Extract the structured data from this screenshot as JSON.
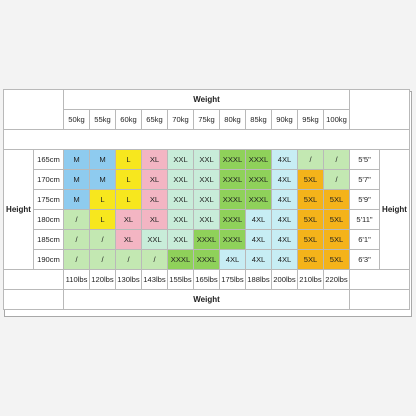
{
  "labels": {
    "weight_top": "Weight",
    "weight_bottom": "Weight",
    "height_left": "Height",
    "height_right": "Height"
  },
  "weights_kg": [
    "50kg",
    "55kg",
    "60kg",
    "65kg",
    "70kg",
    "75kg",
    "80kg",
    "85kg",
    "90kg",
    "95kg",
    "100kg"
  ],
  "weights_lbs": [
    "110lbs",
    "120lbs",
    "130lbs",
    "143lbs",
    "155lbs",
    "165lbs",
    "175lbs",
    "188lbs",
    "200lbs",
    "210lbs",
    "220lbs"
  ],
  "palette": {
    "M": "#8ecbef",
    "L": "#f7e71e",
    "XL": "#f3b5c3",
    "XXL": "#c8ecd9",
    "XXXL": "#8fd15a",
    "4XL": "#c7edf4",
    "5XL": "#f4b31a",
    "/": "#c3e8b2"
  },
  "rows": [
    {
      "cm": "165cm",
      "ft": "5'5\"",
      "cells": [
        "M",
        "M",
        "L",
        "XL",
        "XXL",
        "XXL",
        "XXXL",
        "XXXL",
        "4XL",
        "/",
        "/"
      ]
    },
    {
      "cm": "170cm",
      "ft": "5'7\"",
      "cells": [
        "M",
        "M",
        "L",
        "XL",
        "XXL",
        "XXL",
        "XXXL",
        "XXXL",
        "4XL",
        "5XL",
        "/"
      ]
    },
    {
      "cm": "175cm",
      "ft": "5'9\"",
      "cells": [
        "M",
        "L",
        "L",
        "XL",
        "XXL",
        "XXL",
        "XXXL",
        "XXXL",
        "4XL",
        "5XL",
        "5XL"
      ]
    },
    {
      "cm": "180cm",
      "ft": "5'11\"",
      "cells": [
        "/",
        "L",
        "XL",
        "XL",
        "XXL",
        "XXL",
        "XXXL",
        "4XL",
        "4XL",
        "5XL",
        "5XL"
      ]
    },
    {
      "cm": "185cm",
      "ft": "6'1\"",
      "cells": [
        "/",
        "/",
        "XL",
        "XXL",
        "XXL",
        "XXXL",
        "XXXL",
        "4XL",
        "4XL",
        "5XL",
        "5XL"
      ]
    },
    {
      "cm": "190cm",
      "ft": "6'3\"",
      "cells": [
        "/",
        "/",
        "/",
        "/",
        "XXXL",
        "XXXL",
        "4XL",
        "4XL",
        "4XL",
        "5XL",
        "5XL"
      ]
    }
  ]
}
